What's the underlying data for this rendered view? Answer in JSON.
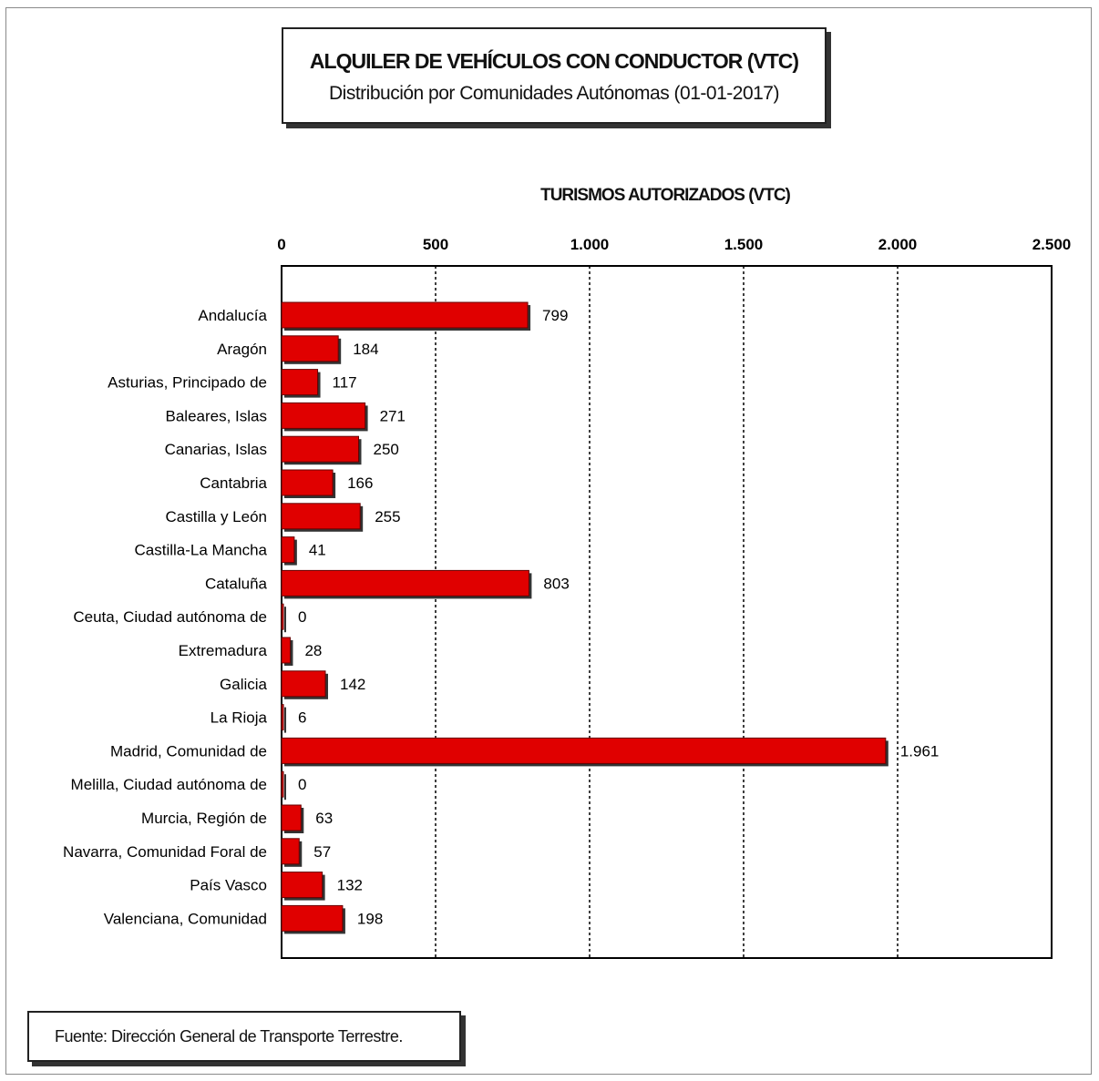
{
  "chart_data": {
    "type": "bar",
    "orientation": "horizontal",
    "title": "ALQUILER DE VEHÍCULOS CON CONDUCTOR (VTC)",
    "subtitle": "Distribución por Comunidades Autónomas (01-01-2017)",
    "xlabel": "TURISMOS AUTORIZADOS (VTC)",
    "xlim": [
      0,
      2500
    ],
    "xticks": [
      "0",
      "500",
      "1.000",
      "1.500",
      "2.000",
      "2.500"
    ],
    "tick_values": [
      0,
      500,
      1000,
      1500,
      2000,
      2500
    ],
    "grid": "vertical dashed",
    "categories": [
      "Andalucía",
      "Aragón",
      "Asturias, Principado de",
      "Baleares, Islas",
      "Canarias, Islas",
      "Cantabria",
      "Castilla y León",
      "Castilla-La Mancha",
      "Cataluña",
      "Ceuta, Ciudad autónoma de",
      "Extremadura",
      "Galicia",
      "La Rioja",
      "Madrid, Comunidad de",
      "Melilla, Ciudad autónoma de",
      "Murcia, Región de",
      "Navarra, Comunidad Foral de",
      "País Vasco",
      "Valenciana, Comunidad"
    ],
    "values": [
      799,
      184,
      117,
      271,
      250,
      166,
      255,
      41,
      803,
      0,
      28,
      142,
      6,
      1961,
      0,
      63,
      57,
      132,
      198
    ],
    "value_labels": [
      "799",
      "184",
      "117",
      "271",
      "250",
      "166",
      "255",
      "41",
      "803",
      "0",
      "28",
      "142",
      "6",
      "1.961",
      "0",
      "63",
      "57",
      "132",
      "198"
    ],
    "bar_color": "#e00000"
  },
  "source": "Fuente: Dirección General de Transporte Terrestre."
}
